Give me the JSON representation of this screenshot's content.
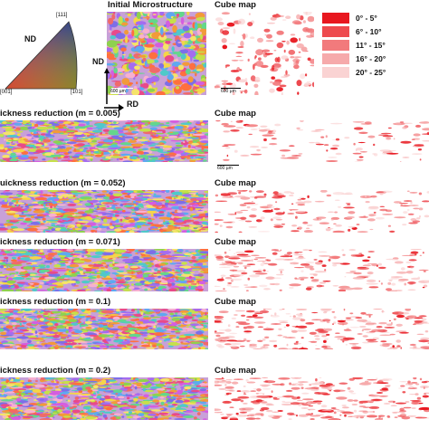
{
  "ipf": {
    "corner_top": "[111]",
    "corner_left": "[001]",
    "corner_right": "[101]",
    "axis": "ND"
  },
  "top": {
    "initial_title": "Initial Microstructure",
    "cube_title": "Cube map",
    "initial_scale": "600 µm",
    "cube_scale": "600 µm",
    "nd": "ND",
    "rd": "RD"
  },
  "legend": [
    {
      "label": "0° - 5°",
      "color": "#e8171f"
    },
    {
      "label": "6° - 10°",
      "color": "#ee4a4e"
    },
    {
      "label": "11° - 15°",
      "color": "#f27a7c"
    },
    {
      "label": "16° - 20°",
      "color": "#f6aaab"
    },
    {
      "label": "20° - 25°",
      "color": "#fad3d3"
    }
  ],
  "rows": [
    {
      "label": "ickness reduction (m = 0.005)",
      "cube_label": "Cube map"
    },
    {
      "label": "uickness reduction (m = 0.052)",
      "cube_label": "Cube map"
    },
    {
      "label": "ickness reduction (m = 0.071)",
      "cube_label": "Cube map"
    },
    {
      "label": "ickness reduction (m = 0.1)",
      "cube_label": "Cube map"
    },
    {
      "label": "ickness reduction (m = 0.2)",
      "cube_label": "Cube map"
    }
  ],
  "row_scale": "600 µm"
}
